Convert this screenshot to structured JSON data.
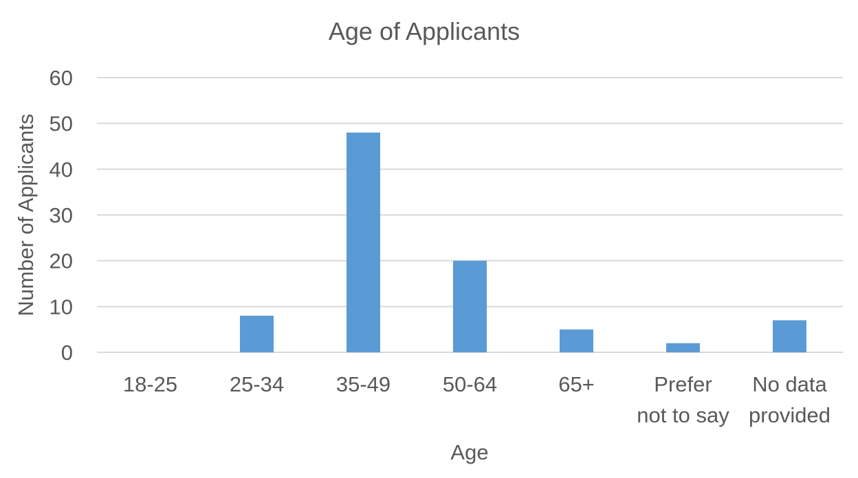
{
  "chart_data": {
    "type": "bar",
    "title": "Age of Applicants",
    "xlabel": "Age",
    "ylabel": "Number of Applicants",
    "categories": [
      "18-25",
      "25-34",
      "35-49",
      "50-64",
      "65+",
      "Prefer not to say",
      "No data provided"
    ],
    "category_lines": [
      [
        "18-25"
      ],
      [
        "25-34"
      ],
      [
        "35-49"
      ],
      [
        "50-64"
      ],
      [
        "65+"
      ],
      [
        "Prefer",
        "not to say"
      ],
      [
        "No data",
        "provided"
      ]
    ],
    "values": [
      0,
      8,
      48,
      20,
      5,
      2,
      7
    ],
    "ylim": [
      0,
      60
    ],
    "yticks": [
      "0",
      "10",
      "20",
      "30",
      "40",
      "50",
      "60"
    ],
    "grid": true,
    "legend": "none",
    "bar_color": "#5b9bd5"
  }
}
